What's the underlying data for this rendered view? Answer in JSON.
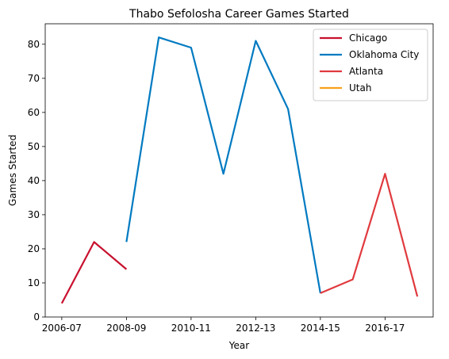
{
  "chart_data": {
    "type": "line",
    "title": "Thabo Sefolosha Career Games Started",
    "xlabel": "Year",
    "ylabel": "Games Started",
    "x": [
      "2006-07",
      "2007-08",
      "2008-09",
      "2009-10",
      "2010-11",
      "2011-12",
      "2012-13",
      "2013-14",
      "2014-15",
      "2015-16",
      "2016-17",
      "2017-18"
    ],
    "x_tick_labels": [
      "2006-07",
      "2008-09",
      "2010-11",
      "2012-13",
      "2014-15",
      "2016-17"
    ],
    "ylim": [
      0,
      86
    ],
    "y_ticks": [
      0,
      10,
      20,
      30,
      40,
      50,
      60,
      70,
      80
    ],
    "legend_position": "top-right",
    "grid": false,
    "series": [
      {
        "name": "Chicago",
        "color": "#c8102e",
        "points": [
          [
            "2006-07",
            4
          ],
          [
            "2007-08",
            22
          ],
          [
            "2008-09",
            14
          ]
        ]
      },
      {
        "name": "Oklahoma City",
        "color": "#007ac1",
        "points": [
          [
            "2008-09",
            22
          ],
          [
            "2009-10",
            82
          ],
          [
            "2010-11",
            79
          ],
          [
            "2011-12",
            42
          ],
          [
            "2012-13",
            81
          ],
          [
            "2013-14",
            61
          ],
          [
            "2014-15",
            7
          ]
        ]
      },
      {
        "name": "Atlanta",
        "color": "#e03a3e",
        "points": [
          [
            "2014-15",
            7
          ],
          [
            "2015-16",
            11
          ],
          [
            "2016-17",
            42
          ],
          [
            "2017-18",
            6
          ]
        ]
      },
      {
        "name": "Utah",
        "color": "#f9a01b",
        "points": []
      }
    ]
  }
}
